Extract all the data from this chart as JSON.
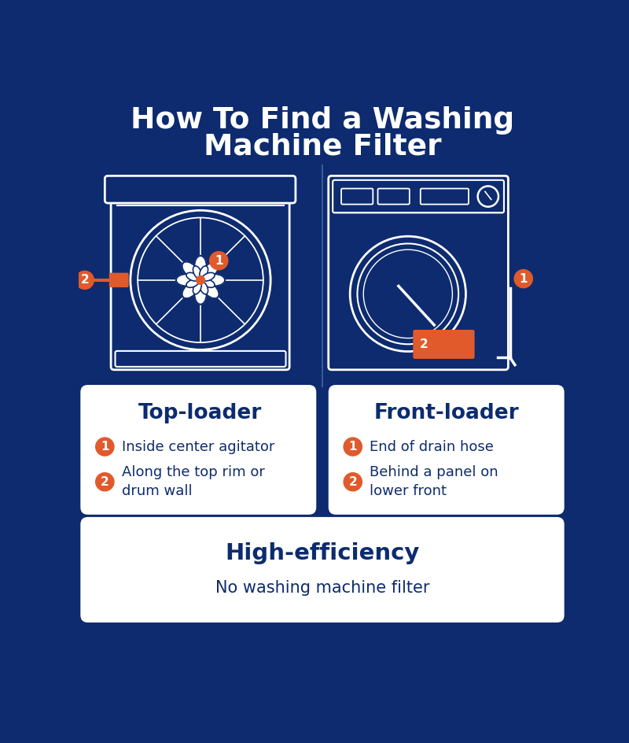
{
  "title_line1": "How To Find a Washing",
  "title_line2": "Machine Filter",
  "bg_color": "#0d2b6e",
  "white": "#ffffff",
  "orange": "#e05a2b",
  "dark_blue_text": "#0d2b6e",
  "card_bg": "#ffffff",
  "top_loader_title": "Top-loader",
  "top_loader_items": [
    "Inside center agitator",
    "Along the top rim or\ndrum wall"
  ],
  "front_loader_title": "Front-loader",
  "front_loader_items": [
    "End of drain hose",
    "Behind a panel on\nlower front"
  ],
  "he_title": "High-efficiency",
  "he_text": "No washing machine filter"
}
